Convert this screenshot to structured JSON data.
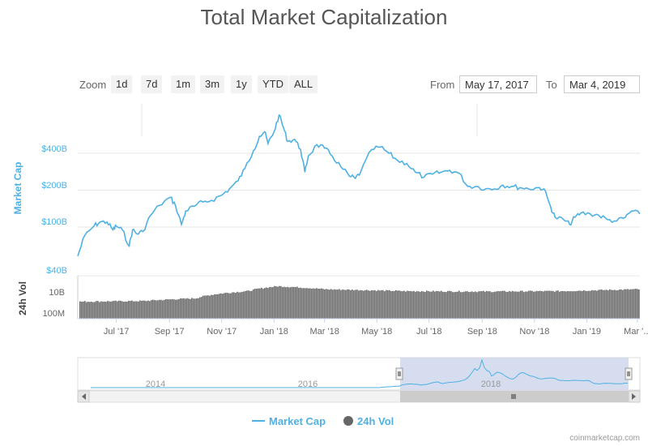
{
  "title": "Total Market Capitalization",
  "zoom": {
    "label": "Zoom",
    "buttons": [
      "1d",
      "7d",
      "1m",
      "3m",
      "1y",
      "YTD",
      "ALL"
    ]
  },
  "range": {
    "from_label": "From",
    "from_value": "May 17, 2017",
    "to_label": "To",
    "to_value": "Mar 4, 2019"
  },
  "credit": "coinmarketcap.com",
  "colors": {
    "market_cap": "#4fb1e3",
    "volume": "#666666",
    "navigator_fill": "#cfd7ec"
  },
  "chart_data": {
    "type": "line",
    "title": "Total Market Capitalization",
    "x_axis": {
      "start": "2017-05-17",
      "end": "2019-03-04",
      "tick_labels": [
        "Jul '17",
        "Sep '17",
        "Nov '17",
        "Jan '18",
        "Mar '18",
        "May '18",
        "Jul '18",
        "Sep '18",
        "Nov '18",
        "Jan '19",
        "Mar '..."
      ]
    },
    "y_axis": {
      "label": "Market Cap",
      "scale": "log",
      "tick_labels": [
        "$400B",
        "$200B",
        "$100B",
        "$40B"
      ],
      "ticks_billion": [
        400,
        200,
        100,
        40
      ]
    },
    "series": [
      {
        "name": "Market Cap",
        "unit": "USD billions",
        "points": [
          [
            "2017-05-17",
            58
          ],
          [
            "2017-05-25",
            85
          ],
          [
            "2017-06-05",
            102
          ],
          [
            "2017-06-12",
            110
          ],
          [
            "2017-06-20",
            110
          ],
          [
            "2017-06-27",
            95
          ],
          [
            "2017-07-01",
            102
          ],
          [
            "2017-07-08",
            95
          ],
          [
            "2017-07-16",
            70
          ],
          [
            "2017-07-20",
            95
          ],
          [
            "2017-07-25",
            88
          ],
          [
            "2017-08-01",
            92
          ],
          [
            "2017-08-10",
            125
          ],
          [
            "2017-08-20",
            150
          ],
          [
            "2017-09-02",
            175
          ],
          [
            "2017-09-08",
            150
          ],
          [
            "2017-09-15",
            105
          ],
          [
            "2017-09-20",
            135
          ],
          [
            "2017-09-30",
            148
          ],
          [
            "2017-10-10",
            160
          ],
          [
            "2017-10-20",
            165
          ],
          [
            "2017-11-01",
            182
          ],
          [
            "2017-11-10",
            205
          ],
          [
            "2017-11-20",
            238
          ],
          [
            "2017-11-28",
            300
          ],
          [
            "2017-12-08",
            420
          ],
          [
            "2017-12-15",
            550
          ],
          [
            "2017-12-21",
            600
          ],
          [
            "2017-12-25",
            480
          ],
          [
            "2018-01-01",
            600
          ],
          [
            "2018-01-07",
            820
          ],
          [
            "2018-01-12",
            650
          ],
          [
            "2018-01-17",
            500
          ],
          [
            "2018-01-25",
            520
          ],
          [
            "2018-02-01",
            430
          ],
          [
            "2018-02-06",
            280
          ],
          [
            "2018-02-10",
            380
          ],
          [
            "2018-02-20",
            470
          ],
          [
            "2018-03-01",
            440
          ],
          [
            "2018-03-10",
            380
          ],
          [
            "2018-03-20",
            310
          ],
          [
            "2018-03-30",
            260
          ],
          [
            "2018-04-06",
            250
          ],
          [
            "2018-04-12",
            280
          ],
          [
            "2018-04-25",
            430
          ],
          [
            "2018-05-05",
            450
          ],
          [
            "2018-05-15",
            400
          ],
          [
            "2018-05-25",
            350
          ],
          [
            "2018-06-05",
            330
          ],
          [
            "2018-06-15",
            280
          ],
          [
            "2018-06-25",
            255
          ],
          [
            "2018-07-05",
            270
          ],
          [
            "2018-07-15",
            280
          ],
          [
            "2018-07-25",
            290
          ],
          [
            "2018-08-05",
            275
          ],
          [
            "2018-08-15",
            215
          ],
          [
            "2018-08-25",
            215
          ],
          [
            "2018-09-05",
            205
          ],
          [
            "2018-09-15",
            205
          ],
          [
            "2018-09-25",
            220
          ],
          [
            "2018-10-05",
            215
          ],
          [
            "2018-10-15",
            210
          ],
          [
            "2018-10-25",
            205
          ],
          [
            "2018-11-05",
            210
          ],
          [
            "2018-11-12",
            205
          ],
          [
            "2018-11-20",
            145
          ],
          [
            "2018-11-25",
            120
          ],
          [
            "2018-12-05",
            115
          ],
          [
            "2018-12-12",
            105
          ],
          [
            "2018-12-18",
            120
          ],
          [
            "2018-12-25",
            130
          ],
          [
            "2019-01-05",
            128
          ],
          [
            "2019-01-15",
            125
          ],
          [
            "2019-01-25",
            115
          ],
          [
            "2019-02-05",
            112
          ],
          [
            "2019-02-15",
            120
          ],
          [
            "2019-02-22",
            135
          ],
          [
            "2019-03-04",
            128
          ]
        ]
      },
      {
        "name": "24h Vol",
        "unit": "USD",
        "y_tick_labels": [
          "10B",
          "100M"
        ],
        "description_trend": [
          [
            "2017-05-17",
            1.2
          ],
          [
            "2017-08-01",
            1.4
          ],
          [
            "2017-10-01",
            2.5
          ],
          [
            "2017-12-01",
            12
          ],
          [
            "2018-01-05",
            35
          ],
          [
            "2018-03-01",
            18
          ],
          [
            "2018-06-01",
            12
          ],
          [
            "2018-09-01",
            11
          ],
          [
            "2018-12-01",
            12
          ],
          [
            "2019-03-04",
            18
          ]
        ]
      }
    ],
    "navigator": {
      "tick_labels": [
        "2014",
        "2016",
        "2018"
      ]
    },
    "legend": [
      "Market Cap",
      "24h Vol"
    ]
  }
}
